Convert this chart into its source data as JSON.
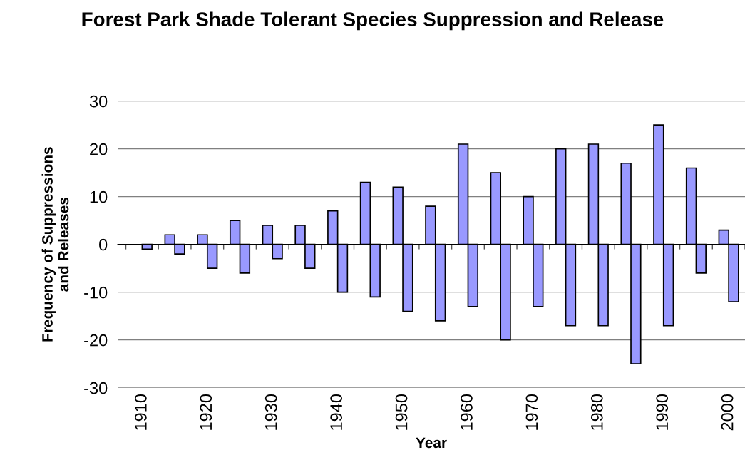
{
  "chart_data": {
    "type": "bar",
    "title": "Forest Park Shade Tolerant Species Suppression and Release",
    "xlabel": "Year",
    "ylabel": "Frequency of Suppressions\nand Releases",
    "categories": [
      "1910",
      null,
      "1920",
      null,
      "1930",
      null,
      "1940",
      null,
      "1950",
      null,
      "1960",
      null,
      "1970",
      null,
      "1980",
      null,
      "1990",
      null,
      "2000"
    ],
    "series": [
      {
        "color": "#9999ff",
        "values": [
          null,
          2,
          2,
          5,
          4,
          4,
          7,
          13,
          12,
          8,
          21,
          15,
          10,
          20,
          21,
          17,
          25,
          16,
          3
        ]
      },
      {
        "color": "#9999ff",
        "values": [
          -1,
          -2,
          -5,
          -6,
          -3,
          -5,
          -10,
          -11,
          -14,
          -16,
          -13,
          -20,
          -13,
          -17,
          -17,
          -25,
          -17,
          -6,
          -12
        ]
      }
    ],
    "ylim": [
      -30,
      30
    ],
    "yticks": [
      -30,
      -20,
      -10,
      0,
      10,
      20,
      30
    ],
    "grid": "y",
    "legend": false
  }
}
